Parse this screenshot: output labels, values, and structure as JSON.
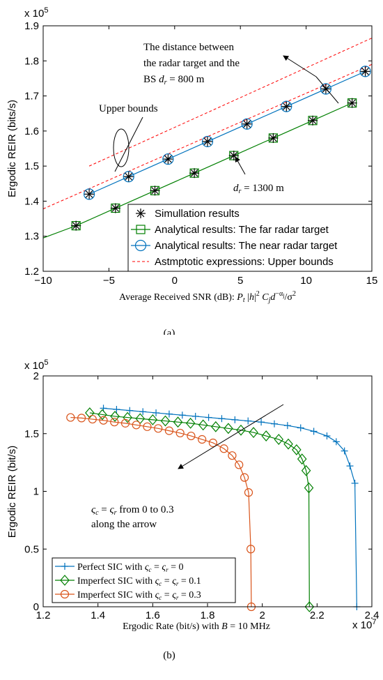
{
  "chart_data": [
    {
      "type": "line",
      "panel_label": "(a)",
      "scale_label": "x 10",
      "scale_exponent": "5",
      "ylabel": "Ergodic REIR (bits/s)",
      "xlabel": "Average Received SNR (dB): P_t |h|^2 C_j d^{−α_j} / σ^2",
      "xlabel_prefix": "Average Received SNR (dB): ",
      "xlim": [
        -10,
        15
      ],
      "ylim": [
        1.2,
        1.9
      ],
      "xticks": [
        "−10",
        "−5",
        "0",
        "5",
        "10",
        "15"
      ],
      "yticks": [
        "1.2",
        "1.3",
        "1.4",
        "1.5",
        "1.6",
        "1.7",
        "1.8",
        "1.9"
      ],
      "grid": false,
      "legend_position": "bottom-right",
      "series": [
        {
          "name": "Analytical results: The far radar target",
          "color": "#007f00",
          "marker": "square",
          "x": [
            -10,
            -7.5,
            -4.5,
            -1.5,
            1.5,
            4.5,
            7.5,
            10.5,
            13.5
          ],
          "y": [
            1.295,
            1.33,
            1.38,
            1.43,
            1.48,
            1.53,
            1.58,
            1.63,
            1.68
          ]
        },
        {
          "name": "Analytical results: The near radar target",
          "color": "#0072bd",
          "marker": "circle",
          "x": [
            -6.5,
            -3.5,
            -0.5,
            2.5,
            5.5,
            8.5,
            11.5,
            14.5
          ],
          "y": [
            1.42,
            1.47,
            1.52,
            1.57,
            1.62,
            1.67,
            1.72,
            1.77
          ]
        },
        {
          "name": "Simullation results",
          "color": "#000000",
          "marker": "asterisk",
          "x": [
            -7.5,
            -4.5,
            -1.5,
            1.5,
            4.5,
            7.5,
            10.5,
            13.5,
            -6.5,
            -3.5,
            -0.5,
            2.5,
            5.5,
            8.5,
            11.5,
            14.5
          ],
          "y": [
            1.33,
            1.38,
            1.43,
            1.48,
            1.53,
            1.58,
            1.63,
            1.68,
            1.42,
            1.47,
            1.52,
            1.57,
            1.62,
            1.67,
            1.72,
            1.77
          ]
        },
        {
          "name": "Astmptotic expressions: Upper bounds",
          "color": "#ff0000",
          "style": "dashed",
          "lines": [
            {
              "x": [
                -10,
                15
              ],
              "y": [
                1.378,
                1.79
              ]
            },
            {
              "x": [
                -6.5,
                15
              ],
              "y": [
                1.5,
                1.865
              ]
            }
          ]
        }
      ],
      "legend": [
        {
          "label": "Simullation results",
          "color": "#000000",
          "marker": "asterisk",
          "style": "solid"
        },
        {
          "label": "Analytical results: The far radar target",
          "color": "#007f00",
          "marker": "square",
          "style": "solid"
        },
        {
          "label": "Analytical results: The near radar target",
          "color": "#0072bd",
          "marker": "circle",
          "style": "solid"
        },
        {
          "label": "Astmptotic expressions: Upper bounds",
          "color": "#ff0000",
          "marker": "none",
          "style": "dashed"
        }
      ],
      "annotations": {
        "distance_line1": "The distance between",
        "distance_line2": "the radar target and the",
        "distance_line3_prefix": "BS ",
        "distance_line3_suffix": " = 800 m",
        "upper_bounds": "Upper bounds",
        "dr_suffix": " = 1300 m"
      }
    },
    {
      "type": "line",
      "panel_label": "(b)",
      "scale_label": "x 10",
      "scale_exponent": "5",
      "x_scale_label": "x 10",
      "x_scale_exponent": "7",
      "ylabel": "Ergodic REIR (bit/s)",
      "xlabel_prefix": "Ergodic Rate (bit/s) with ",
      "xlabel_suffix": " = 10 MHz",
      "xlim": [
        1.2,
        2.4
      ],
      "ylim": [
        0,
        2
      ],
      "xticks": [
        "1.2",
        "1.4",
        "1.6",
        "1.8",
        "2",
        "2.2",
        "2.4"
      ],
      "yticks": [
        "0",
        "0.5",
        "1",
        "1.5",
        "2"
      ],
      "grid": false,
      "legend_position": "bottom-left",
      "series": [
        {
          "name": "Perfect SIC with ς_c = ς_r = 0",
          "label_prefix": "Perfect SIC with ",
          "label_suffix": " = 0",
          "color": "#0072bd",
          "marker": "plus",
          "x": [
            1.42,
            1.468,
            1.516,
            1.564,
            1.612,
            1.66,
            1.708,
            1.756,
            1.804,
            1.852,
            1.9,
            1.948,
            1.996,
            2.044,
            2.092,
            2.14,
            2.188,
            2.236,
            2.27,
            2.3,
            2.32,
            2.338,
            2.345
          ],
          "y": [
            1.72,
            1.71,
            1.7,
            1.69,
            1.68,
            1.67,
            1.66,
            1.65,
            1.64,
            1.63,
            1.62,
            1.61,
            1.6,
            1.585,
            1.57,
            1.55,
            1.52,
            1.48,
            1.43,
            1.35,
            1.22,
            1.07,
            0
          ]
        },
        {
          "name": "Imperfect SIC with ς_c = ς_r = 0.1",
          "label_prefix": "Imperfect SIC with ",
          "label_suffix": " = 0.1",
          "color": "#007f00",
          "marker": "diamond",
          "x": [
            1.37,
            1.416,
            1.462,
            1.508,
            1.554,
            1.6,
            1.646,
            1.692,
            1.738,
            1.784,
            1.83,
            1.876,
            1.922,
            1.968,
            2.014,
            2.06,
            2.095,
            2.125,
            2.145,
            2.16,
            2.17,
            2.172
          ],
          "y": [
            1.68,
            1.665,
            1.65,
            1.64,
            1.63,
            1.62,
            1.61,
            1.6,
            1.59,
            1.575,
            1.56,
            1.545,
            1.53,
            1.51,
            1.48,
            1.45,
            1.41,
            1.36,
            1.28,
            1.18,
            1.03,
            0
          ]
        },
        {
          "name": "Imperfect SIC with ς_c = ς_r = 0.3",
          "label_prefix": "Imperfect SIC with ",
          "label_suffix": " = 0.3",
          "color": "#d95319",
          "marker": "circle",
          "x": [
            1.3,
            1.34,
            1.38,
            1.42,
            1.46,
            1.5,
            1.54,
            1.58,
            1.62,
            1.66,
            1.7,
            1.74,
            1.78,
            1.82,
            1.86,
            1.89,
            1.915,
            1.935,
            1.95,
            1.958,
            1.96
          ],
          "y": [
            1.64,
            1.635,
            1.625,
            1.615,
            1.6,
            1.59,
            1.575,
            1.56,
            1.545,
            1.525,
            1.505,
            1.48,
            1.45,
            1.42,
            1.37,
            1.31,
            1.23,
            1.12,
            0.99,
            0.5,
            0
          ]
        }
      ],
      "annotations": {
        "arrow_line1_suffix": " from 0 to 0.3",
        "arrow_line2": "along the arrow"
      }
    }
  ]
}
